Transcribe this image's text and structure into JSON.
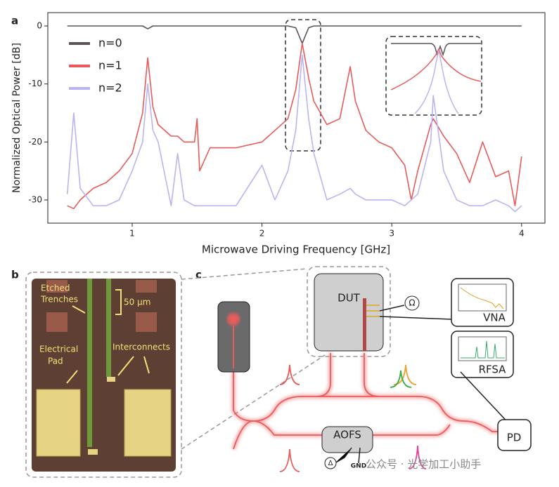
{
  "chart_data": {
    "type": "line",
    "ylabel": "Normalized Optical Power [dB]",
    "xlabel": "Microwave Driving Frequency [GHz]",
    "x": [
      0.5,
      0.55,
      0.6,
      0.7,
      0.8,
      0.9,
      1.0,
      1.08,
      1.12,
      1.16,
      1.2,
      1.3,
      1.35,
      1.4,
      1.48,
      1.5,
      1.52,
      1.6,
      1.8,
      2.0,
      2.1,
      2.2,
      2.26,
      2.31,
      2.36,
      2.4,
      2.5,
      2.6,
      2.68,
      2.72,
      2.8,
      2.9,
      3.0,
      3.1,
      3.15,
      3.2,
      3.3,
      3.32,
      3.4,
      3.5,
      3.6,
      3.7,
      3.8,
      3.9,
      3.95,
      4.0
    ],
    "series": [
      {
        "name": "n=0",
        "color": "#5a5457",
        "values": [
          0,
          0,
          0,
          0,
          0,
          0,
          0,
          0,
          -0.5,
          0,
          0,
          0,
          0,
          0,
          0,
          0,
          0,
          0,
          0,
          0,
          0,
          0,
          -0.3,
          -3,
          -0.3,
          0,
          0,
          0,
          0,
          0,
          0,
          0,
          0,
          0,
          0,
          0,
          0,
          0,
          0,
          0,
          0,
          0,
          0,
          0,
          0,
          0
        ]
      },
      {
        "name": "n=1",
        "color": "#e85b5b",
        "values": [
          -31,
          -31.5,
          -30,
          -28,
          -27,
          -25,
          -22,
          -15,
          -5.5,
          -14,
          -17,
          -19,
          -19,
          -20,
          -20,
          -16,
          -25,
          -21,
          -21,
          -20,
          -18,
          -16,
          -11,
          -3,
          -9,
          -13,
          -17,
          -16,
          -7,
          -13,
          -18,
          -20,
          -21,
          -24,
          -30,
          -25,
          -17,
          -16,
          -19,
          -22,
          -27,
          -20,
          -26,
          -25,
          -31,
          -22.5
        ]
      },
      {
        "name": "n=2",
        "color": "#bab4f2",
        "values": [
          -29,
          -15,
          -28,
          -31,
          -31,
          -30,
          -25,
          -20,
          -10,
          -18,
          -20,
          -31,
          -22,
          -30,
          -31,
          -31,
          -31,
          -31,
          -31,
          -24,
          -30,
          -25,
          -18,
          -5,
          -16,
          -22,
          -30,
          -29,
          -28,
          -29,
          -30,
          -30,
          -30,
          -31,
          -30,
          -29,
          -20,
          -12,
          -25,
          -30,
          -31,
          -31,
          -30,
          -31,
          -32,
          -31
        ]
      }
    ],
    "xlim": [
      0.35,
      4.18
    ],
    "ylim": [
      -34,
      2.3
    ],
    "xticks": [
      1,
      2,
      3,
      4
    ],
    "yticks": [
      0,
      -10,
      -20,
      -30
    ],
    "legend": "upper left"
  },
  "panel_labels": [
    "a",
    "b",
    "c"
  ],
  "micrograph": {
    "trenches": [
      "Etched",
      "Trenches"
    ],
    "scale": "50 μm",
    "pad": [
      "Electrical",
      "Pad"
    ],
    "interconnects": "Interconnects"
  },
  "setup": {
    "dut": "DUT",
    "ohm": "Ω",
    "vna": "VNA",
    "rfsa": "RFSA",
    "aofs": "AOFS",
    "pd": "PD",
    "delta": "Δ",
    "gnd": "GND",
    "watermark": "公众号 · 光学加工小助手"
  }
}
